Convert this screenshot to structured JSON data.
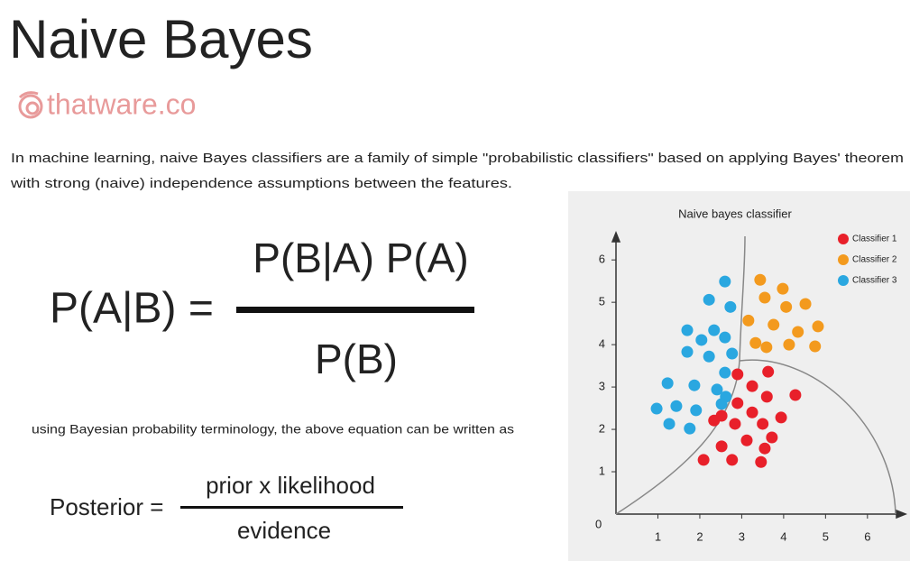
{
  "header": {
    "title": "Naive Bayes",
    "brand": "thatware.co"
  },
  "intro": [
    "In machine learning, naive Bayes classifiers are a family of simple \"probabilistic classifiers\" based on applying Bayes' theorem",
    "with strong (naive) independence assumptions between the features."
  ],
  "formula": {
    "left": "P(A|B) =",
    "numerator": "P(B|A) P(A)",
    "denominator": "P(B)"
  },
  "note": "using Bayesian probability terminology, the above equation can be written as",
  "posterior": {
    "left": "Posterior =",
    "numerator": "prior x likelihood",
    "denominator": "evidence"
  },
  "chart_data": {
    "type": "scatter",
    "title": "Naive bayes classifier",
    "origin_label": "0",
    "xlim": [
      0,
      6.8
    ],
    "ylim": [
      0,
      6.6
    ],
    "xticks": [
      1,
      2,
      3,
      4,
      5,
      6
    ],
    "yticks": [
      1,
      2,
      3,
      4,
      5,
      6
    ],
    "legend": "upper right",
    "series": [
      {
        "name": "Classifier 1",
        "color": "#e8202a",
        "x": [
          2.9,
          3.63,
          3.25,
          2.9,
          3.6,
          4.28,
          2.52,
          3.25,
          3.94,
          2.34,
          2.84,
          3.5,
          3.12,
          3.72,
          2.52,
          3.55,
          2.09,
          2.77,
          3.46
        ],
        "values": [
          3.3,
          3.36,
          3.02,
          2.62,
          2.77,
          2.81,
          2.32,
          2.4,
          2.28,
          2.21,
          2.13,
          2.13,
          1.74,
          1.81,
          1.6,
          1.55,
          1.28,
          1.28,
          1.23
        ]
      },
      {
        "name": "Classifier 2",
        "color": "#f39a1e",
        "x": [
          3.44,
          3.98,
          3.55,
          4.06,
          4.52,
          3.16,
          3.76,
          4.34,
          4.82,
          3.33,
          3.59,
          4.13,
          4.75
        ],
        "values": [
          5.53,
          5.32,
          5.11,
          4.89,
          4.96,
          4.57,
          4.47,
          4.3,
          4.43,
          4.04,
          3.94,
          4.0,
          3.96
        ]
      },
      {
        "name": "Classifier 3",
        "color": "#2aa7e0",
        "x": [
          2.6,
          2.22,
          2.73,
          1.7,
          2.34,
          2.04,
          2.6,
          2.77,
          1.7,
          2.22,
          2.6,
          1.23,
          1.87,
          2.41,
          2.62,
          0.97,
          1.44,
          1.91,
          2.52,
          1.27,
          1.76
        ],
        "values": [
          5.49,
          5.06,
          4.89,
          4.34,
          4.34,
          4.11,
          4.17,
          3.79,
          3.83,
          3.72,
          3.34,
          3.09,
          3.04,
          2.94,
          2.77,
          2.49,
          2.55,
          2.45,
          2.6,
          2.13,
          2.02
        ]
      }
    ]
  }
}
